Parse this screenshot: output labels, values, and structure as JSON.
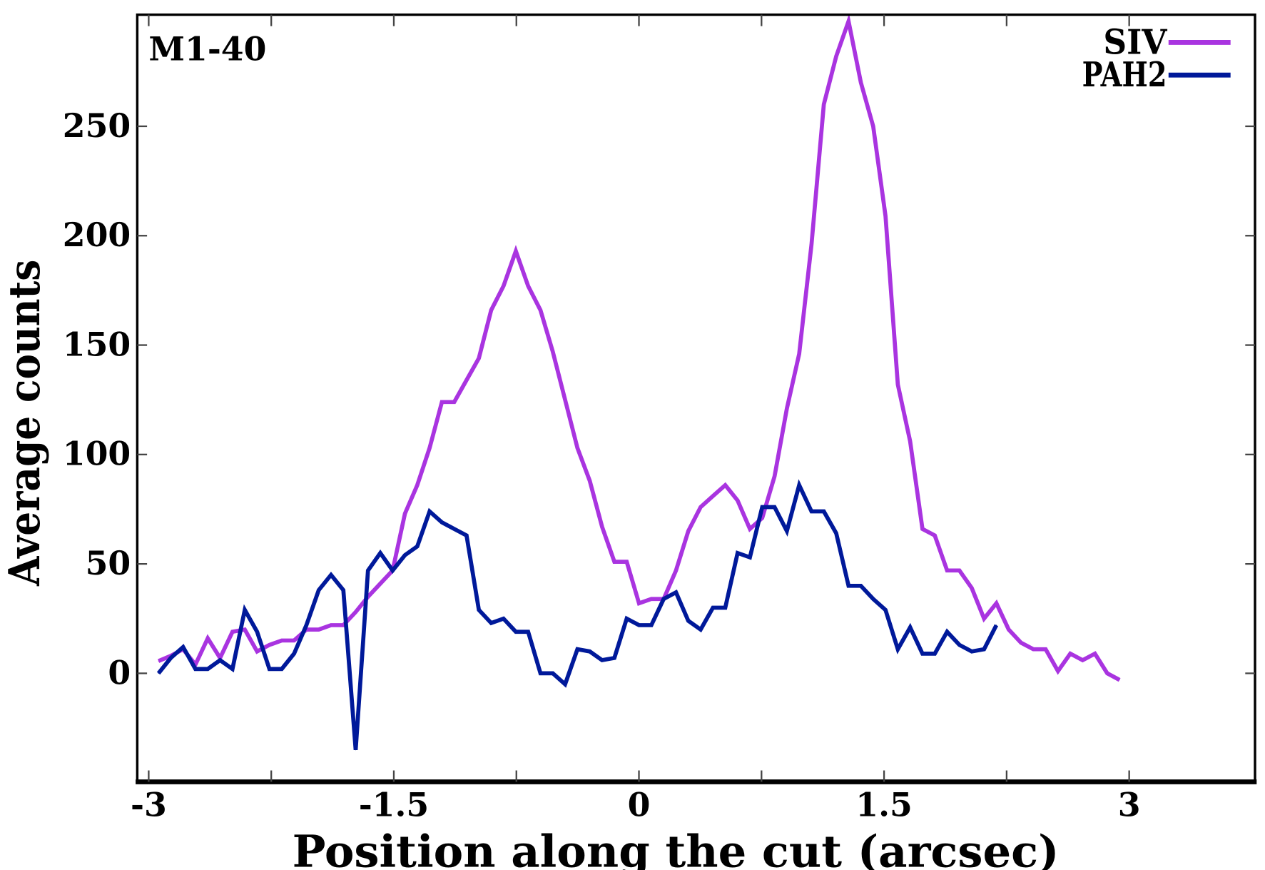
{
  "chart_data": {
    "type": "line",
    "title": "M1-40",
    "xlabel": "Position along the cut (arcsec)",
    "ylabel": "Average counts",
    "xlim": [
      -3.07,
      3.77
    ],
    "ylim": [
      -49.6,
      301
    ],
    "xticks": [
      -3,
      -2.25,
      -1.5,
      -0.75,
      0,
      0.75,
      1.5,
      2.25,
      3
    ],
    "xtick_labels": [
      "-3",
      "",
      "-1.5",
      "",
      "0",
      "",
      "1.5",
      "",
      "3"
    ],
    "yticks": [
      0,
      50,
      100,
      150,
      200,
      250
    ],
    "ytick_labels": [
      "0",
      "50",
      "100",
      "150",
      "200",
      "250"
    ],
    "grid": false,
    "legend_placement": "top-right",
    "series": [
      {
        "name": "SIV",
        "color": "#a934e0",
        "x_start": -2.94,
        "x_step": 0.0754,
        "values": [
          5.6,
          8,
          11,
          4,
          16,
          7,
          19,
          20,
          10,
          13,
          15,
          15,
          20,
          20,
          22,
          22,
          28,
          35,
          41,
          47,
          73,
          86,
          103,
          124,
          124,
          134,
          144,
          166,
          177,
          193,
          177,
          166,
          147,
          125,
          103,
          88,
          67,
          51,
          51,
          32,
          34,
          34,
          47,
          65,
          76,
          81,
          86,
          79,
          66,
          71,
          90,
          121,
          146,
          196,
          260,
          282,
          298,
          270,
          250,
          209,
          132,
          106,
          66,
          63,
          47,
          47,
          39,
          25,
          32,
          20,
          14,
          11,
          11,
          1,
          9,
          6,
          9,
          0,
          -3
        ]
      },
      {
        "name": "PAH2",
        "color": "#00199a",
        "x_start": -2.94,
        "x_step": 0.0754,
        "values": [
          0,
          7,
          12,
          2,
          2,
          6,
          2,
          29,
          19,
          2,
          2,
          9,
          22,
          38,
          45,
          38,
          -35,
          47,
          55,
          47,
          54,
          58,
          74,
          69,
          66,
          63,
          29,
          23,
          25,
          19,
          19,
          0,
          0,
          -5,
          11,
          10,
          6,
          7,
          25,
          22,
          22,
          34,
          37,
          24,
          20,
          30,
          30,
          55,
          53,
          76,
          76,
          65,
          86,
          74,
          74,
          64,
          40,
          40,
          34,
          29,
          11,
          21,
          9,
          9,
          19,
          13,
          10,
          11,
          22
        ]
      }
    ]
  }
}
